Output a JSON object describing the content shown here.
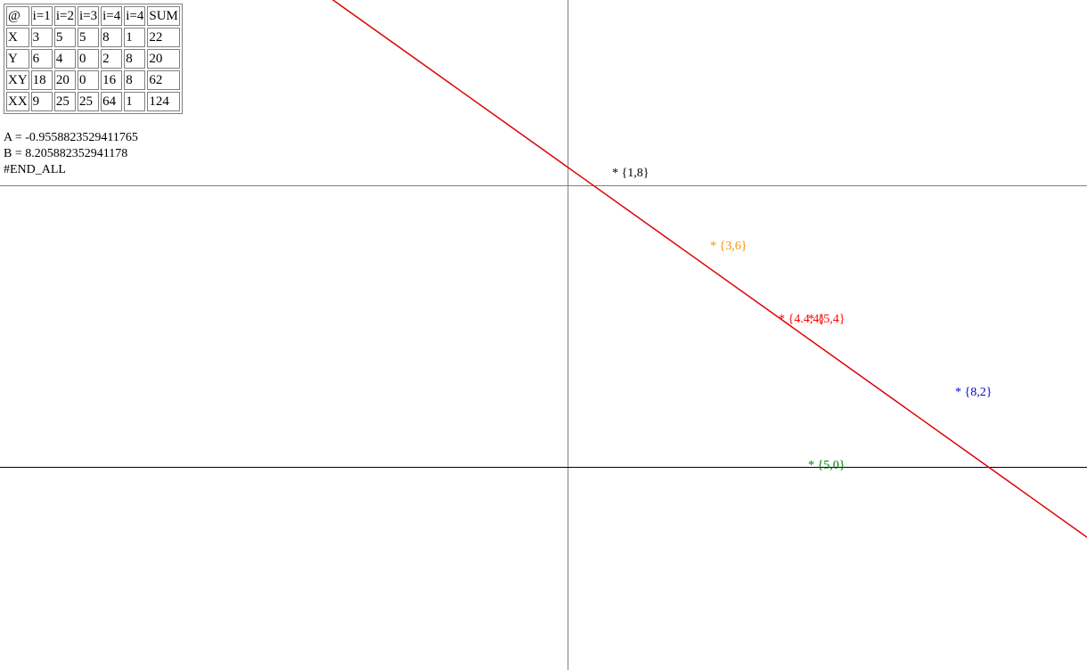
{
  "table": {
    "headers": [
      "@",
      "i=1",
      "i=2",
      "i=3",
      "i=4",
      "i=4",
      "SUM"
    ],
    "rows": [
      [
        "X",
        "3",
        "5",
        "5",
        "8",
        "1",
        "22"
      ],
      [
        "Y",
        "6",
        "4",
        "0",
        "2",
        "8",
        "20"
      ],
      [
        "XY",
        "18",
        "20",
        "0",
        "16",
        "8",
        "62"
      ],
      [
        "XX",
        "9",
        "25",
        "25",
        "64",
        "1",
        "124"
      ]
    ]
  },
  "results": {
    "a_line": "A = -0.9558823529411765",
    "b_line": "B = 8.205882352941178",
    "end_marker": "#END_ALL"
  },
  "chart_data": {
    "type": "scatter",
    "points": [
      {
        "x": 1,
        "y": 8,
        "label": "* {1,8}",
        "color": "#000000"
      },
      {
        "x": 3,
        "y": 6,
        "label": "* {3,6}",
        "color": "#ff8c00"
      },
      {
        "x": 4.4,
        "y": 4,
        "label": "* {4.4,4}",
        "color": "#ff0000"
      },
      {
        "x": 5,
        "y": 4,
        "label": "* {5,4}",
        "color": "#ff0000"
      },
      {
        "x": 8,
        "y": 2,
        "label": "* {8,2}",
        "color": "#0000cd"
      },
      {
        "x": 5,
        "y": 0,
        "label": "* {5,0}",
        "color": "#008000"
      }
    ],
    "regression_line": {
      "slope": -0.9558823529411765,
      "intercept": 8.205882352941178,
      "color": "#e00000"
    },
    "axes_color": "#000000",
    "reference_color": "#808080"
  }
}
